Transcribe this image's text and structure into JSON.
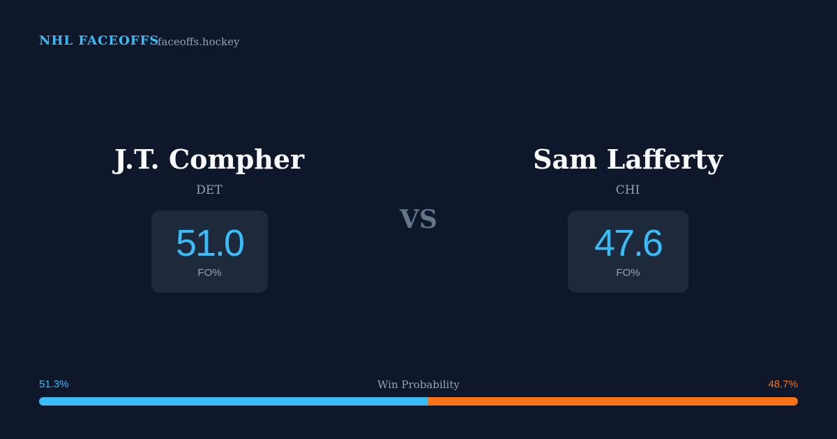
{
  "header": {
    "brand": "NHL FACEOFFS",
    "site": "faceoffs.hockey"
  },
  "players": [
    {
      "name": "J.T. Compher",
      "team": "DET",
      "stat_value": "51.0",
      "stat_label": "FO%"
    },
    {
      "name": "Sam Lafferty",
      "team": "CHI",
      "stat_value": "47.6",
      "stat_label": "FO%"
    }
  ],
  "versus": "VS",
  "win_probability": {
    "title": "Win Probability",
    "values": [
      51.3,
      48.7
    ],
    "value_labels": [
      "51.3%",
      "48.7%"
    ],
    "colors": [
      "#38bdf8",
      "#f97316"
    ]
  }
}
